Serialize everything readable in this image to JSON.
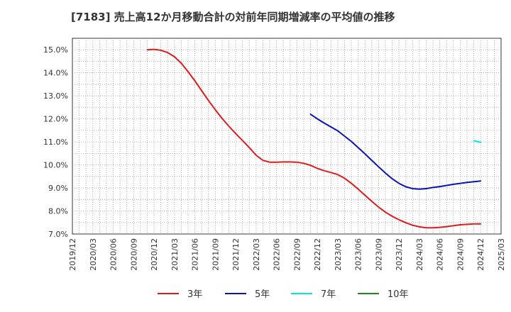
{
  "chart_data": {
    "type": "line",
    "title": "[7183]  売上高12か月移動合計の対前年同期増減率の平均値の推移",
    "xlabel": "",
    "ylabel": "",
    "x_ticks": [
      "2019/12",
      "2020/03",
      "2020/06",
      "2020/09",
      "2020/12",
      "2021/03",
      "2021/06",
      "2021/09",
      "2021/12",
      "2022/03",
      "2022/06",
      "2022/09",
      "2022/12",
      "2023/03",
      "2023/06",
      "2023/09",
      "2023/12",
      "2024/03",
      "2024/06",
      "2024/09",
      "2024/12",
      "2025/03"
    ],
    "y_ticks": [
      "7.0%",
      "8.0%",
      "9.0%",
      "10.0%",
      "11.0%",
      "12.0%",
      "13.0%",
      "14.0%",
      "15.0%"
    ],
    "ylim": [
      7.0,
      15.5
    ],
    "grid": true,
    "legend_position": "bottom",
    "series": [
      {
        "name": "3年",
        "color": "#e31a1c",
        "points": [
          [
            "2020/11",
            15.0
          ],
          [
            "2020/12",
            15.02
          ],
          [
            "2021/01",
            14.98
          ],
          [
            "2021/02",
            14.88
          ],
          [
            "2021/03",
            14.7
          ],
          [
            "2021/04",
            14.42
          ],
          [
            "2021/05",
            14.05
          ],
          [
            "2021/06",
            13.65
          ],
          [
            "2021/07",
            13.22
          ],
          [
            "2021/08",
            12.8
          ],
          [
            "2021/09",
            12.4
          ],
          [
            "2021/10",
            12.02
          ],
          [
            "2021/11",
            11.68
          ],
          [
            "2021/12",
            11.36
          ],
          [
            "2021/01",
            null
          ],
          [
            "2022/01",
            11.06
          ],
          [
            "2022/02",
            10.75
          ],
          [
            "2022/03",
            10.42
          ],
          [
            "2022/04",
            10.2
          ],
          [
            "2022/05",
            10.12
          ],
          [
            "2022/06",
            10.12
          ],
          [
            "2022/07",
            10.13
          ],
          [
            "2022/08",
            10.13
          ],
          [
            "2022/09",
            10.12
          ],
          [
            "2022/10",
            10.07
          ],
          [
            "2022/11",
            9.98
          ],
          [
            "2022/12",
            9.85
          ],
          [
            "2023/01",
            9.75
          ],
          [
            "2023/02",
            9.67
          ],
          [
            "2023/03",
            9.58
          ],
          [
            "2023/04",
            9.42
          ],
          [
            "2023/05",
            9.2
          ],
          [
            "2023/06",
            8.95
          ],
          [
            "2023/07",
            8.68
          ],
          [
            "2023/08",
            8.42
          ],
          [
            "2023/09",
            8.17
          ],
          [
            "2023/10",
            7.95
          ],
          [
            "2023/11",
            7.77
          ],
          [
            "2023/12",
            7.62
          ],
          [
            "2024/01",
            7.49
          ],
          [
            "2024/02",
            7.38
          ],
          [
            "2024/03",
            7.31
          ],
          [
            "2024/04",
            7.27
          ],
          [
            "2024/05",
            7.27
          ],
          [
            "2024/06",
            7.29
          ],
          [
            "2024/07",
            7.32
          ],
          [
            "2024/08",
            7.36
          ],
          [
            "2024/09",
            7.4
          ],
          [
            "2024/10",
            7.42
          ],
          [
            "2024/11",
            7.44
          ],
          [
            "2024/12",
            7.44
          ]
        ]
      },
      {
        "name": "5年",
        "color": "#0a14b4",
        "points": [
          [
            "2022/11",
            12.2
          ],
          [
            "2022/12",
            12.0
          ],
          [
            "2023/01",
            11.82
          ],
          [
            "2023/02",
            11.65
          ],
          [
            "2023/03",
            11.48
          ],
          [
            "2023/04",
            11.25
          ],
          [
            "2023/05",
            11.02
          ],
          [
            "2023/06",
            10.75
          ],
          [
            "2023/07",
            10.48
          ],
          [
            "2023/08",
            10.2
          ],
          [
            "2023/09",
            9.92
          ],
          [
            "2023/10",
            9.65
          ],
          [
            "2023/11",
            9.4
          ],
          [
            "2023/12",
            9.2
          ],
          [
            "2024/01",
            9.05
          ],
          [
            "2024/02",
            8.97
          ],
          [
            "2024/03",
            8.95
          ],
          [
            "2024/04",
            8.97
          ],
          [
            "2024/05",
            9.02
          ],
          [
            "2024/06",
            9.06
          ],
          [
            "2024/07",
            9.11
          ],
          [
            "2024/08",
            9.16
          ],
          [
            "2024/09",
            9.2
          ],
          [
            "2024/10",
            9.24
          ],
          [
            "2024/11",
            9.27
          ],
          [
            "2024/12",
            9.3
          ]
        ]
      },
      {
        "name": "7年",
        "color": "#00e5ee",
        "points": [
          [
            "2024/11",
            11.05
          ],
          [
            "2024/12",
            10.98
          ]
        ]
      },
      {
        "name": "10年",
        "color": "#1a8a1a",
        "points": []
      }
    ]
  }
}
